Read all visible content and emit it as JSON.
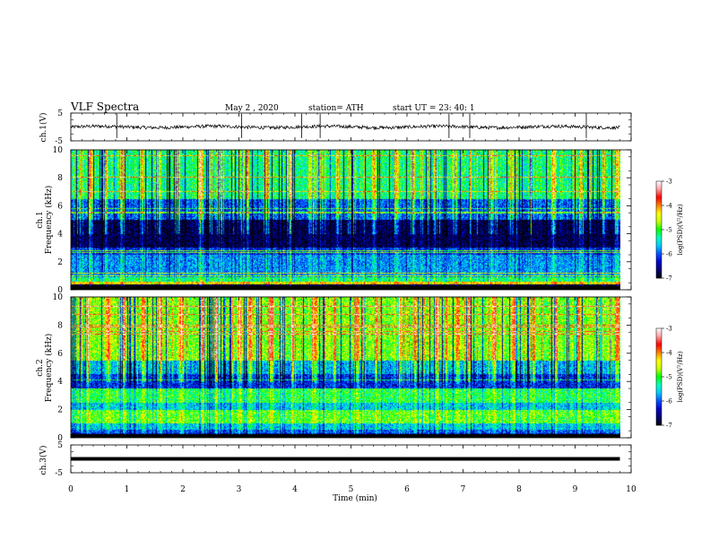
{
  "header": {
    "title": "VLF  Spectra",
    "date": "May 2  , 2020",
    "station": "station= ATH",
    "start_ut": "start  UT  =    23: 40: 1"
  },
  "chart_data": [
    {
      "type": "line",
      "name": "channel-1-waveform",
      "ylabel": "ch.1(V)",
      "ylim": [
        -5,
        5
      ],
      "yticks": [
        "5",
        "-5"
      ],
      "xlim": [
        0,
        10
      ],
      "mean_level_v": 0,
      "noise_amplitude_v": 0.6,
      "spike_times_min": [
        0.82,
        3.05,
        4.12,
        4.45,
        6.75,
        7.12,
        9.2
      ],
      "color": "#000000"
    },
    {
      "type": "heatmap",
      "name": "channel-1-spectrogram",
      "ylabel": "ch.1\nFrequency  (kHz)",
      "ylabel_line1": "ch.1",
      "ylabel_line2": "Frequency  (kHz)",
      "ylim": [
        0,
        10
      ],
      "yticks": [
        "0",
        "2",
        "4",
        "6",
        "8",
        "10"
      ],
      "xlim": [
        0,
        9.8
      ],
      "colorbar": {
        "label": "log(PSD)(V²/Hz)",
        "range": [
          -7,
          -3
        ],
        "ticks": [
          "-3",
          "-4",
          "-5",
          "-6",
          "-7"
        ],
        "colors": [
          "#000010",
          "#000070",
          "#0000c8",
          "#0050ff",
          "#00c8ff",
          "#00ffc0",
          "#00ff00",
          "#c8ff00",
          "#ffff00",
          "#ff8000",
          "#ff0000",
          "#ffa0a0",
          "#ffffff"
        ]
      },
      "bands": [
        {
          "f": [
            0.0,
            0.25
          ],
          "level": -6.6
        },
        {
          "f": [
            0.25,
            0.4
          ],
          "level": -7.0
        },
        {
          "f": [
            0.4,
            0.6
          ],
          "level": -4.3
        },
        {
          "f": [
            0.6,
            0.9
          ],
          "level": -5.2
        },
        {
          "f": [
            0.9,
            2.5
          ],
          "level": -5.8
        },
        {
          "f": [
            2.5,
            3.0
          ],
          "level": -6.2
        },
        {
          "f": [
            3.0,
            5.0
          ],
          "level": -6.8
        },
        {
          "f": [
            5.0,
            6.5
          ],
          "level": -6.0
        },
        {
          "f": [
            6.5,
            10.0
          ],
          "level": -5.2
        }
      ],
      "spike_times_min": [
        0.35,
        0.6,
        0.9,
        1.25,
        1.55,
        1.9,
        2.3,
        2.65,
        3.05,
        3.15,
        3.5,
        3.9,
        4.3,
        4.75,
        5.05,
        5.4,
        5.8,
        6.1,
        6.5,
        6.85,
        7.12,
        7.5,
        7.85,
        8.2,
        8.6,
        9.1,
        9.5,
        9.75
      ]
    },
    {
      "type": "heatmap",
      "name": "channel-2-spectrogram",
      "ylabel": "ch.2\nFrequency  (kHz)",
      "ylabel_line1": "ch.2",
      "ylabel_line2": "Frequency  (kHz)",
      "ylim": [
        0,
        10
      ],
      "yticks": [
        "0",
        "2",
        "4",
        "6",
        "8",
        "10"
      ],
      "xlim": [
        0,
        9.8
      ],
      "colorbar": {
        "label": "log(PSD)(V²/Hz)",
        "range": [
          -7,
          -3
        ],
        "ticks": [
          "-3",
          "-4",
          "-5",
          "-6",
          "-7"
        ],
        "colors": [
          "#000010",
          "#000070",
          "#0000c8",
          "#0050ff",
          "#00c8ff",
          "#00ffc0",
          "#00ff00",
          "#c8ff00",
          "#ffff00",
          "#ff8000",
          "#ff0000",
          "#ffa0a0",
          "#ffffff"
        ]
      },
      "bands": [
        {
          "f": [
            0.0,
            0.3
          ],
          "level": -6.4
        },
        {
          "f": [
            0.3,
            0.6
          ],
          "level": -6.0
        },
        {
          "f": [
            0.6,
            1.0
          ],
          "level": -5.6
        },
        {
          "f": [
            1.0,
            2.0
          ],
          "level": -4.9
        },
        {
          "f": [
            2.0,
            2.5
          ],
          "level": -5.6
        },
        {
          "f": [
            2.5,
            3.5
          ],
          "level": -5.1
        },
        {
          "f": [
            3.5,
            4.5
          ],
          "level": -6.2
        },
        {
          "f": [
            4.5,
            5.5
          ],
          "level": -5.7
        },
        {
          "f": [
            5.5,
            10.0
          ],
          "level": -4.8
        }
      ],
      "spike_times_min": [
        0.3,
        0.65,
        0.95,
        1.3,
        1.6,
        1.95,
        2.35,
        2.6,
        3.0,
        3.2,
        3.55,
        3.95,
        4.35,
        4.7,
        5.1,
        5.45,
        5.85,
        6.15,
        6.55,
        6.9,
        7.1,
        7.55,
        7.9,
        8.25,
        8.65,
        9.05,
        9.45,
        9.75
      ]
    },
    {
      "type": "line",
      "name": "channel-3-waveform",
      "ylabel": "ch.3(V)",
      "ylim": [
        -5,
        5
      ],
      "yticks": [
        "5",
        "-5"
      ],
      "xlim": [
        0,
        10
      ],
      "mean_level_v": 0,
      "line_extent_min": [
        0,
        9.8
      ],
      "color": "#000000"
    }
  ],
  "x_axis": {
    "label": "Time  (min)",
    "range": [
      0,
      10
    ],
    "ticks": [
      "0",
      "1",
      "2",
      "3",
      "4",
      "5",
      "6",
      "7",
      "8",
      "9",
      "10"
    ]
  }
}
